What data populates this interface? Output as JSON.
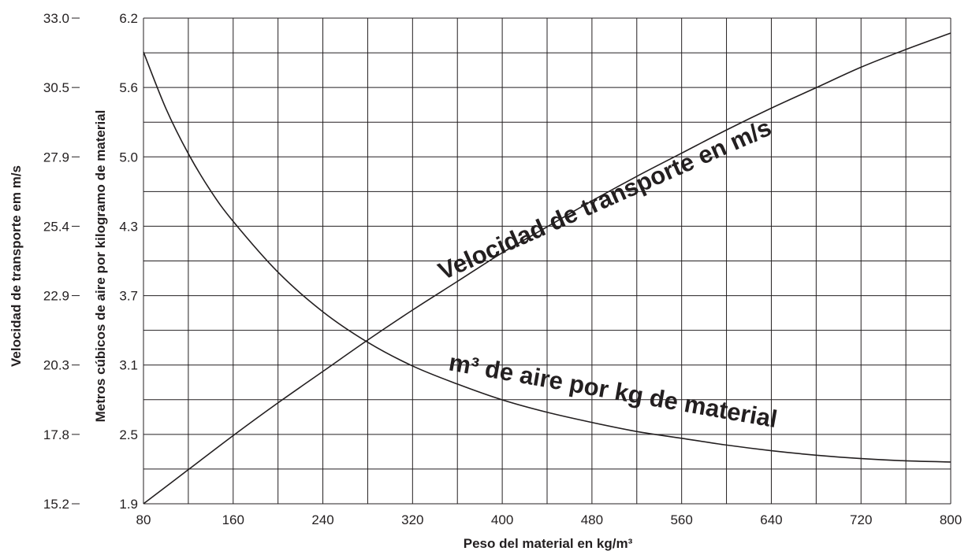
{
  "chart_data": {
    "type": "line",
    "x_axis": {
      "label": "Peso del material en kg/m³",
      "min": 80,
      "max": 800,
      "step": 40,
      "tick_labels": [
        "80",
        "160",
        "240",
        "320",
        "400",
        "480",
        "560",
        "640",
        "720",
        "800"
      ]
    },
    "y_axis_inner": {
      "label": "Metros cúbicos de aire por kilogramo de material",
      "min": 1.9,
      "max": 6.2,
      "tick_labels": [
        "6.2",
        "5.6",
        "5.0",
        "4.3",
        "3.7",
        "3.1",
        "2.5",
        "1.9"
      ]
    },
    "y_axis_outer": {
      "label": "Velocidad de transporte em m/s",
      "min": 15.2,
      "max": 33.0,
      "tick_labels": [
        "33.0",
        "30.5",
        "27.9",
        "25.4",
        "22.9",
        "20.3",
        "17.8",
        "15.2"
      ]
    },
    "grid": true,
    "series": [
      {
        "name": "Velocidad de transporte en m/s",
        "axis": "outer",
        "x": [
          80,
          120,
          160,
          200,
          240,
          280,
          320,
          360,
          400,
          440,
          480,
          520,
          560,
          600,
          640,
          680,
          720,
          760,
          800
        ],
        "y": [
          15.2,
          16.45,
          17.7,
          18.9,
          20.05,
          21.2,
          22.3,
          23.35,
          24.4,
          25.35,
          26.3,
          27.2,
          28.05,
          28.9,
          29.7,
          30.45,
          31.2,
          31.85,
          32.45
        ]
      },
      {
        "name": "m³  de aire por kg de material",
        "axis": "inner",
        "x": [
          80,
          100,
          120,
          140,
          160,
          200,
          240,
          280,
          320,
          360,
          400,
          440,
          480,
          520,
          560,
          600,
          640,
          680,
          720,
          760,
          800
        ],
        "y": [
          5.9,
          5.4,
          5.0,
          4.67,
          4.4,
          3.95,
          3.6,
          3.33,
          3.12,
          2.96,
          2.82,
          2.71,
          2.62,
          2.54,
          2.48,
          2.42,
          2.37,
          2.33,
          2.3,
          2.28,
          2.27
        ]
      }
    ]
  }
}
